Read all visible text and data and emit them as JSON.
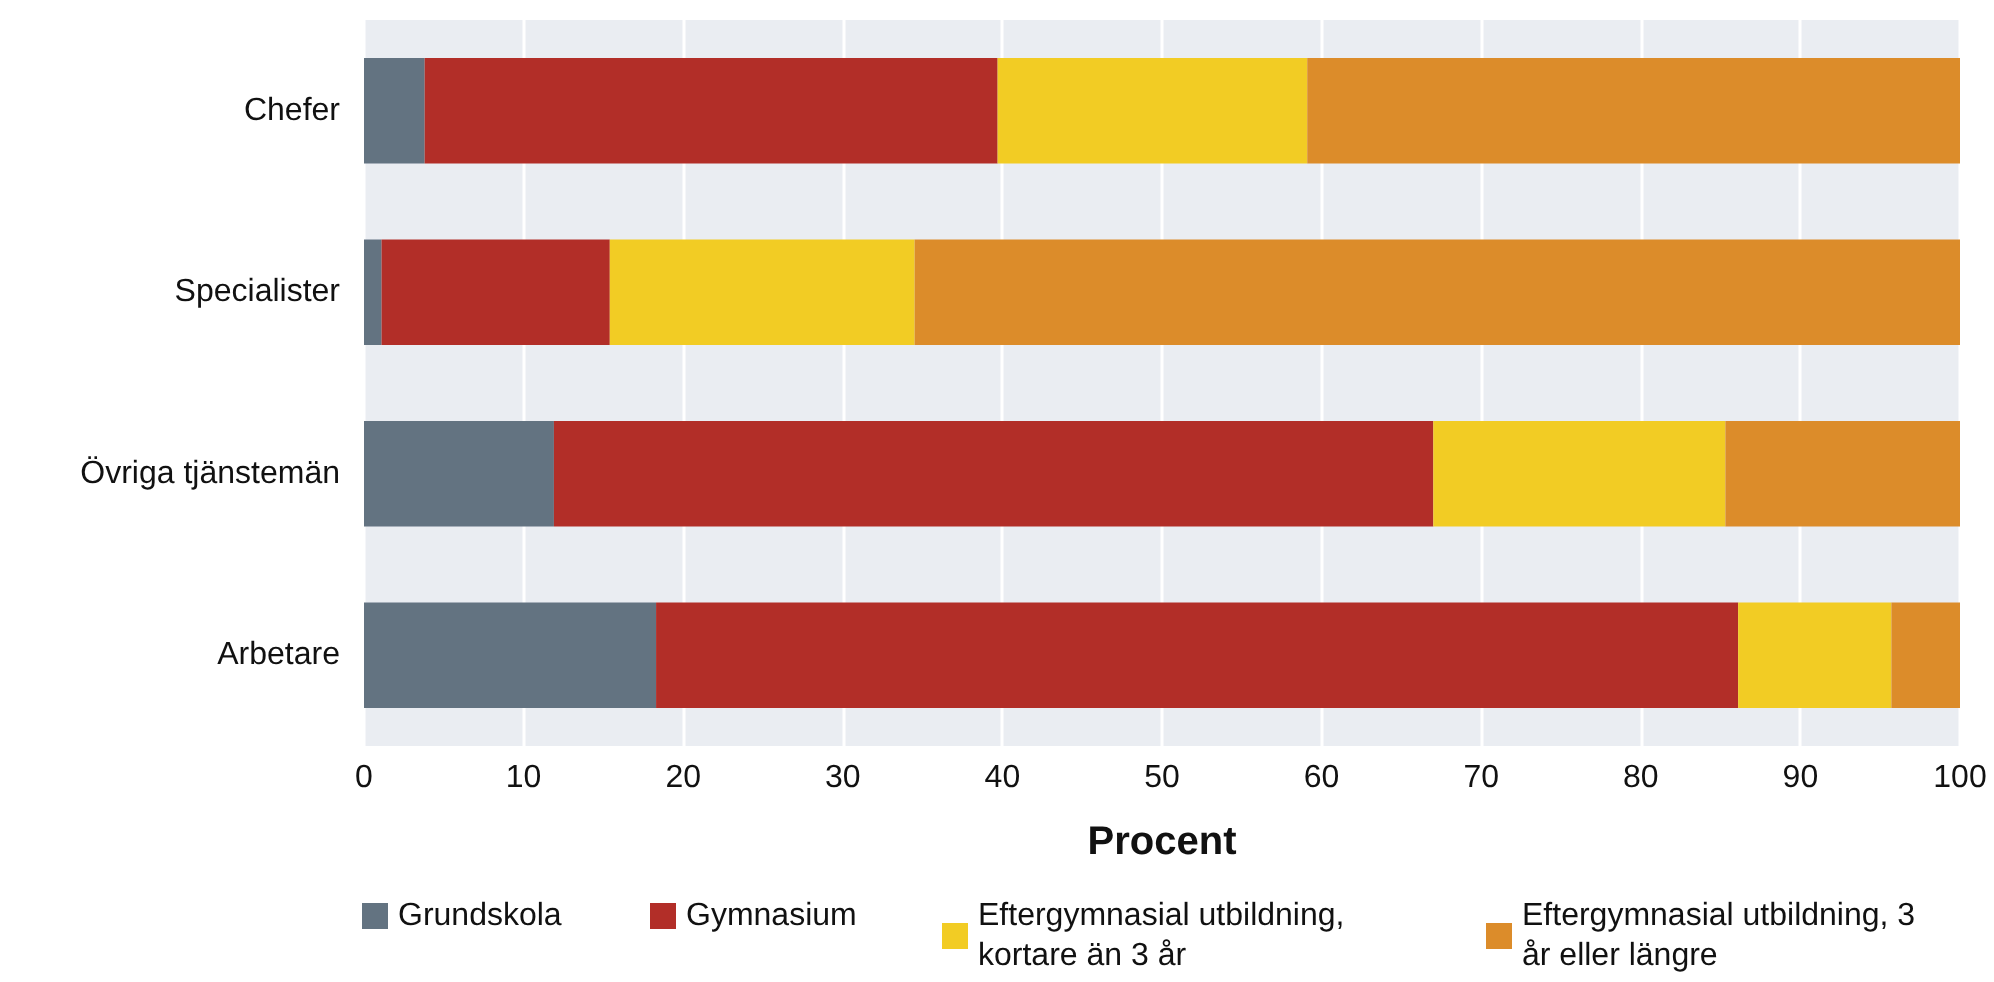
{
  "chart_data": {
    "type": "bar",
    "orientation": "horizontal",
    "stacked": true,
    "xlabel": "Procent",
    "categories": [
      "Chefer",
      "Specialister",
      "Övriga tjänstemän",
      "Arbetare"
    ],
    "series": [
      {
        "name": "Grundskola",
        "color": "#637381",
        "values": [
          3.8,
          1.1,
          11.9,
          18.3
        ]
      },
      {
        "name": "Gymnasium",
        "color": "#b22e28",
        "values": [
          35.9,
          14.3,
          55.1,
          67.8
        ]
      },
      {
        "name": "Eftergymnasial utbildning, kortare än 3 år",
        "color": "#f2cc24",
        "values": [
          19.4,
          19.1,
          18.3,
          9.6
        ]
      },
      {
        "name": "Eftergymnasial utbildning, 3 år eller längre",
        "color": "#dc8c2a",
        "values": [
          40.9,
          65.5,
          14.7,
          4.3
        ]
      }
    ],
    "xlim": [
      0,
      100
    ],
    "xticks": [
      0,
      10,
      20,
      30,
      40,
      50,
      60,
      70,
      80,
      90,
      100
    ],
    "grid": "x",
    "legend": "bottom"
  }
}
